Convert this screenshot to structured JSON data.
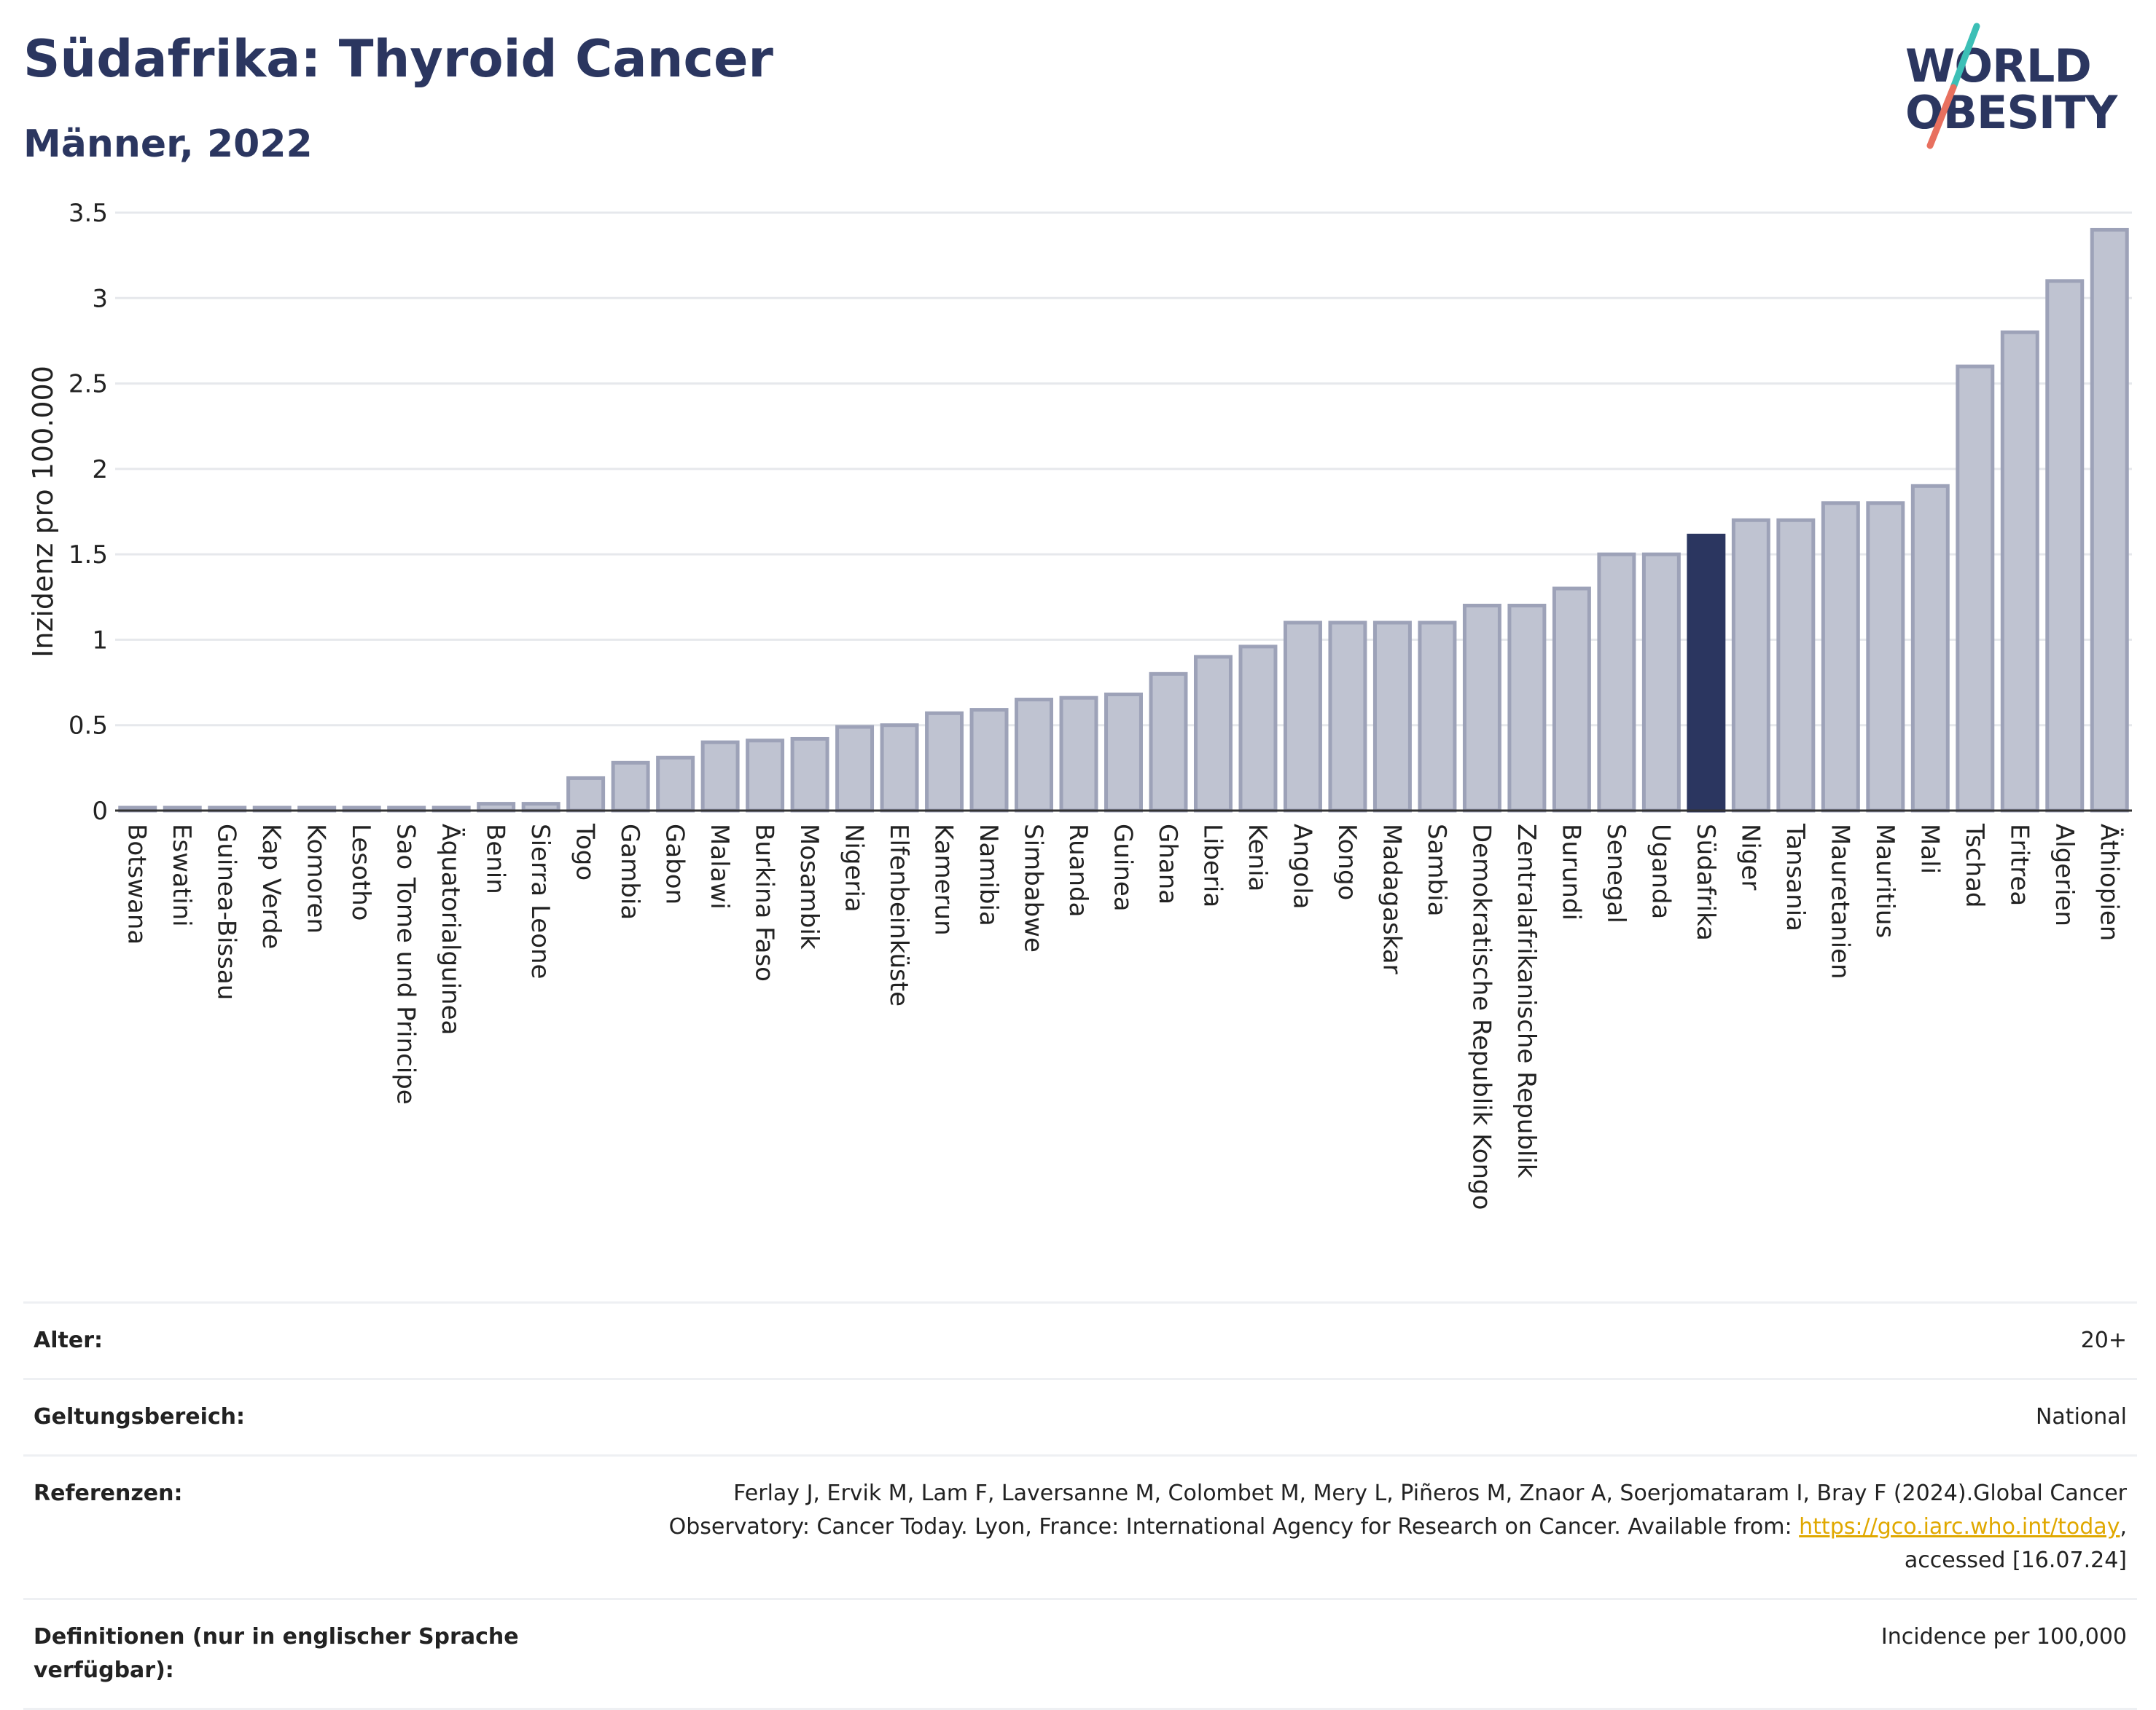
{
  "header": {
    "title": "Südafrika: Thyroid Cancer",
    "subtitle": "Männer, 2022",
    "logo_line1": "WORLD",
    "logo_line2": "OBESITY"
  },
  "colors": {
    "title": "#2b3660",
    "bar_fill": "#bfc3d1",
    "bar_stroke": "#9da2b8",
    "highlight": "#2b3660",
    "grid": "#e6e8ec",
    "logo_slash_teal": "#3cbfb6",
    "logo_slash_red": "#e8705f"
  },
  "chart_data": {
    "type": "bar",
    "title": "",
    "xlabel": "",
    "ylabel": "Inzidenz pro 100.000",
    "ylim": [
      0,
      3.5
    ],
    "yticks": [
      "0",
      "0.5",
      "1",
      "1.5",
      "2",
      "2.5",
      "3",
      "3.5"
    ],
    "grid": true,
    "highlight": "Südafrika",
    "categories": [
      "Botswana",
      "Eswatini",
      "Guinea-Bissau",
      "Kap Verde",
      "Komoren",
      "Lesotho",
      "Sao Tome und Principe",
      "Äquatorialguinea",
      "Benin",
      "Sierra Leone",
      "Togo",
      "Gambia",
      "Gabon",
      "Malawi",
      "Burkina Faso",
      "Mosambik",
      "Nigeria",
      "Elfenbeinküste",
      "Kamerun",
      "Namibia",
      "Simbabwe",
      "Ruanda",
      "Guinea",
      "Ghana",
      "Liberia",
      "Kenia",
      "Angola",
      "Kongo",
      "Madagaskar",
      "Sambia",
      "Demokratische Republik Kongo",
      "Zentralafrikanische Republik",
      "Burundi",
      "Senegal",
      "Uganda",
      "Südafrika",
      "Niger",
      "Tansania",
      "Mauretanien",
      "Mauritius",
      "Mali",
      "Tschad",
      "Eritrea",
      "Algerien",
      "Äthiopien"
    ],
    "values": [
      0,
      0,
      0,
      0,
      0,
      0,
      0,
      0,
      0.04,
      0.04,
      0.19,
      0.28,
      0.31,
      0.4,
      0.41,
      0.42,
      0.49,
      0.5,
      0.57,
      0.59,
      0.65,
      0.66,
      0.68,
      0.8,
      0.9,
      0.96,
      1.1,
      1.1,
      1.1,
      1.1,
      1.2,
      1.2,
      1.3,
      1.5,
      1.5,
      1.61,
      1.7,
      1.7,
      1.8,
      1.8,
      1.9,
      2.6,
      2.8,
      3.1,
      3.4
    ]
  },
  "info_table": [
    {
      "label": "Alter:",
      "value": "20+"
    },
    {
      "label": "Geltungsbereich:",
      "value": "National"
    },
    {
      "label": "Referenzen:",
      "value_parts": {
        "text1": "Ferlay J, Ervik M, Lam F, Laversanne M, Colombet M, Mery L, Piñeros M, Znaor A, Soerjomataram I, Bray F (2024).Global Cancer Observatory: Cancer Today. Lyon, France: International Agency for Research on Cancer. Available from: ",
        "link": "https://gco.iarc.who.int/today",
        "text2": ", accessed [16.07.24]"
      }
    },
    {
      "label": "Definitionen (nur in englischer Sprache verfügbar):",
      "value": "Incidence per 100,000"
    }
  ]
}
